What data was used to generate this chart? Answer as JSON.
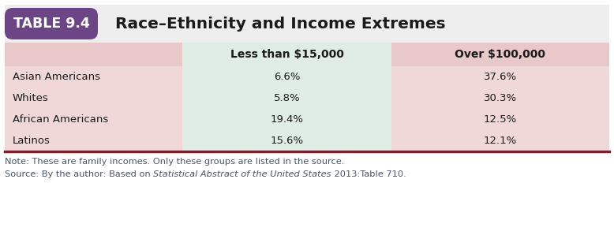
{
  "table_label": "TABLE 9.4",
  "title": "Race–Ethnicity and Income Extremes",
  "col_headers": [
    "",
    "Less than $15,000",
    "Over $100,000"
  ],
  "rows": [
    [
      "Asian Americans",
      "6.6%",
      "37.6%"
    ],
    [
      "Whites",
      "5.8%",
      "30.3%"
    ],
    [
      "African Americans",
      "19.4%",
      "12.5%"
    ],
    [
      "Latinos",
      "15.6%",
      "12.1%"
    ]
  ],
  "note_text": "Note: These are family incomes. Only these groups are listed in the source.",
  "source_prefix": "Source: By the author: Based on ",
  "source_italic": "Statistical Abstract of the United States",
  "source_suffix": " 2013:Table 710.",
  "label_bg": "#6b4585",
  "label_text_color": "#ffffff",
  "header_row_bg": "#e8c8c8",
  "col1_bg": "#e0ede5",
  "col2_bg": "#e8c8c8",
  "data_row_bg": "#f0d8d8",
  "title_area_bg": "#eeeeee",
  "border_color": "#8b1a2a",
  "note_color": "#4a5568",
  "fig_bg": "#ffffff"
}
